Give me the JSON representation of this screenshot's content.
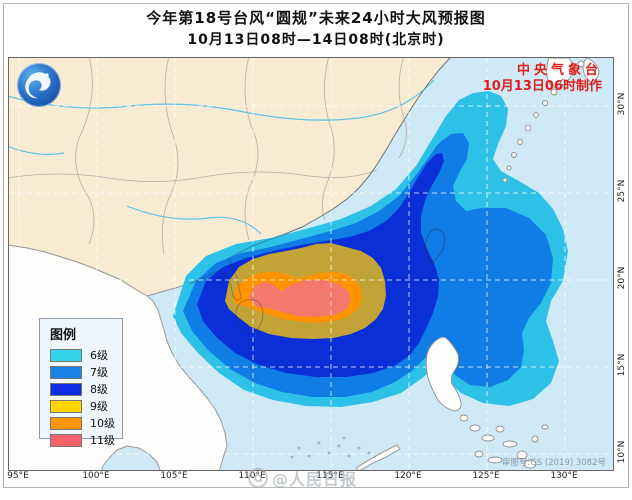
{
  "title": {
    "line1": "今年第18号台风“圆规”未来24小时大风预报图",
    "line2": "10月13日08时—14日08时(北京时)"
  },
  "credit": {
    "agency": "中央气象台",
    "issued": "10月13日06时制作",
    "color": "#e01d1d"
  },
  "legend": {
    "title": "图例",
    "items": [
      {
        "label": "6级",
        "color": "#35d4ec"
      },
      {
        "label": "7级",
        "color": "#1b82e8"
      },
      {
        "label": "8级",
        "color": "#0b2ce0"
      },
      {
        "label": "9级",
        "color": "#fed402"
      },
      {
        "label": "10级",
        "color": "#fe9400"
      },
      {
        "label": "11级",
        "color": "#f8626a"
      }
    ]
  },
  "map": {
    "x_axis": [
      "95°E",
      "100°E",
      "105°E",
      "110°E",
      "115°E",
      "120°E",
      "125°E",
      "130°E"
    ],
    "y_axis": [
      "30°N",
      "25°N",
      "20°N",
      "15°N",
      "10°N"
    ],
    "note": "审图号:GS (2019) 3082号",
    "sea_color": "#cfe9f7",
    "land_color": "#f7ecd2",
    "band_colors": {
      "lv6": "#2ec1e8",
      "lv7": "#0f7de5",
      "lv8": "#0a2fd6",
      "lv9": "#c2a338",
      "lv10": "#ff9400",
      "lv11": "#f4786b"
    }
  },
  "watermark": {
    "text": "@人民日报"
  },
  "icons": {
    "cma_logo": "blue swirl emblem",
    "weibo_swirl": "gray swirl"
  }
}
